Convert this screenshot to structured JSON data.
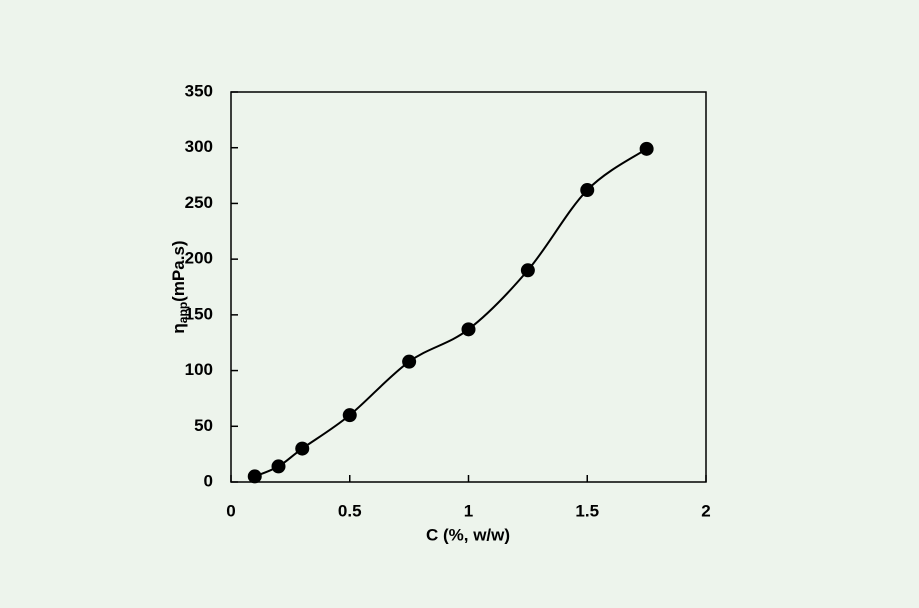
{
  "chart_data": {
    "type": "line",
    "x_label": "C (%, w/w)",
    "y_label_symbol": "η",
    "y_label_subscript": "app",
    "y_label_unit": "(mPa.s)",
    "x": [
      0.1,
      0.2,
      0.3,
      0.5,
      0.75,
      1,
      1.25,
      1.5,
      1.75
    ],
    "series": [
      {
        "color": "#000000",
        "values": [
          5,
          14,
          30,
          60,
          108,
          137,
          190,
          262,
          299
        ]
      }
    ],
    "xlim": [
      0,
      2
    ],
    "xticks": [
      0,
      0.5,
      1,
      1.5,
      2
    ],
    "ylim": [
      0,
      350
    ],
    "yticks": [
      0,
      50,
      100,
      150,
      200,
      250,
      300,
      350
    ]
  }
}
